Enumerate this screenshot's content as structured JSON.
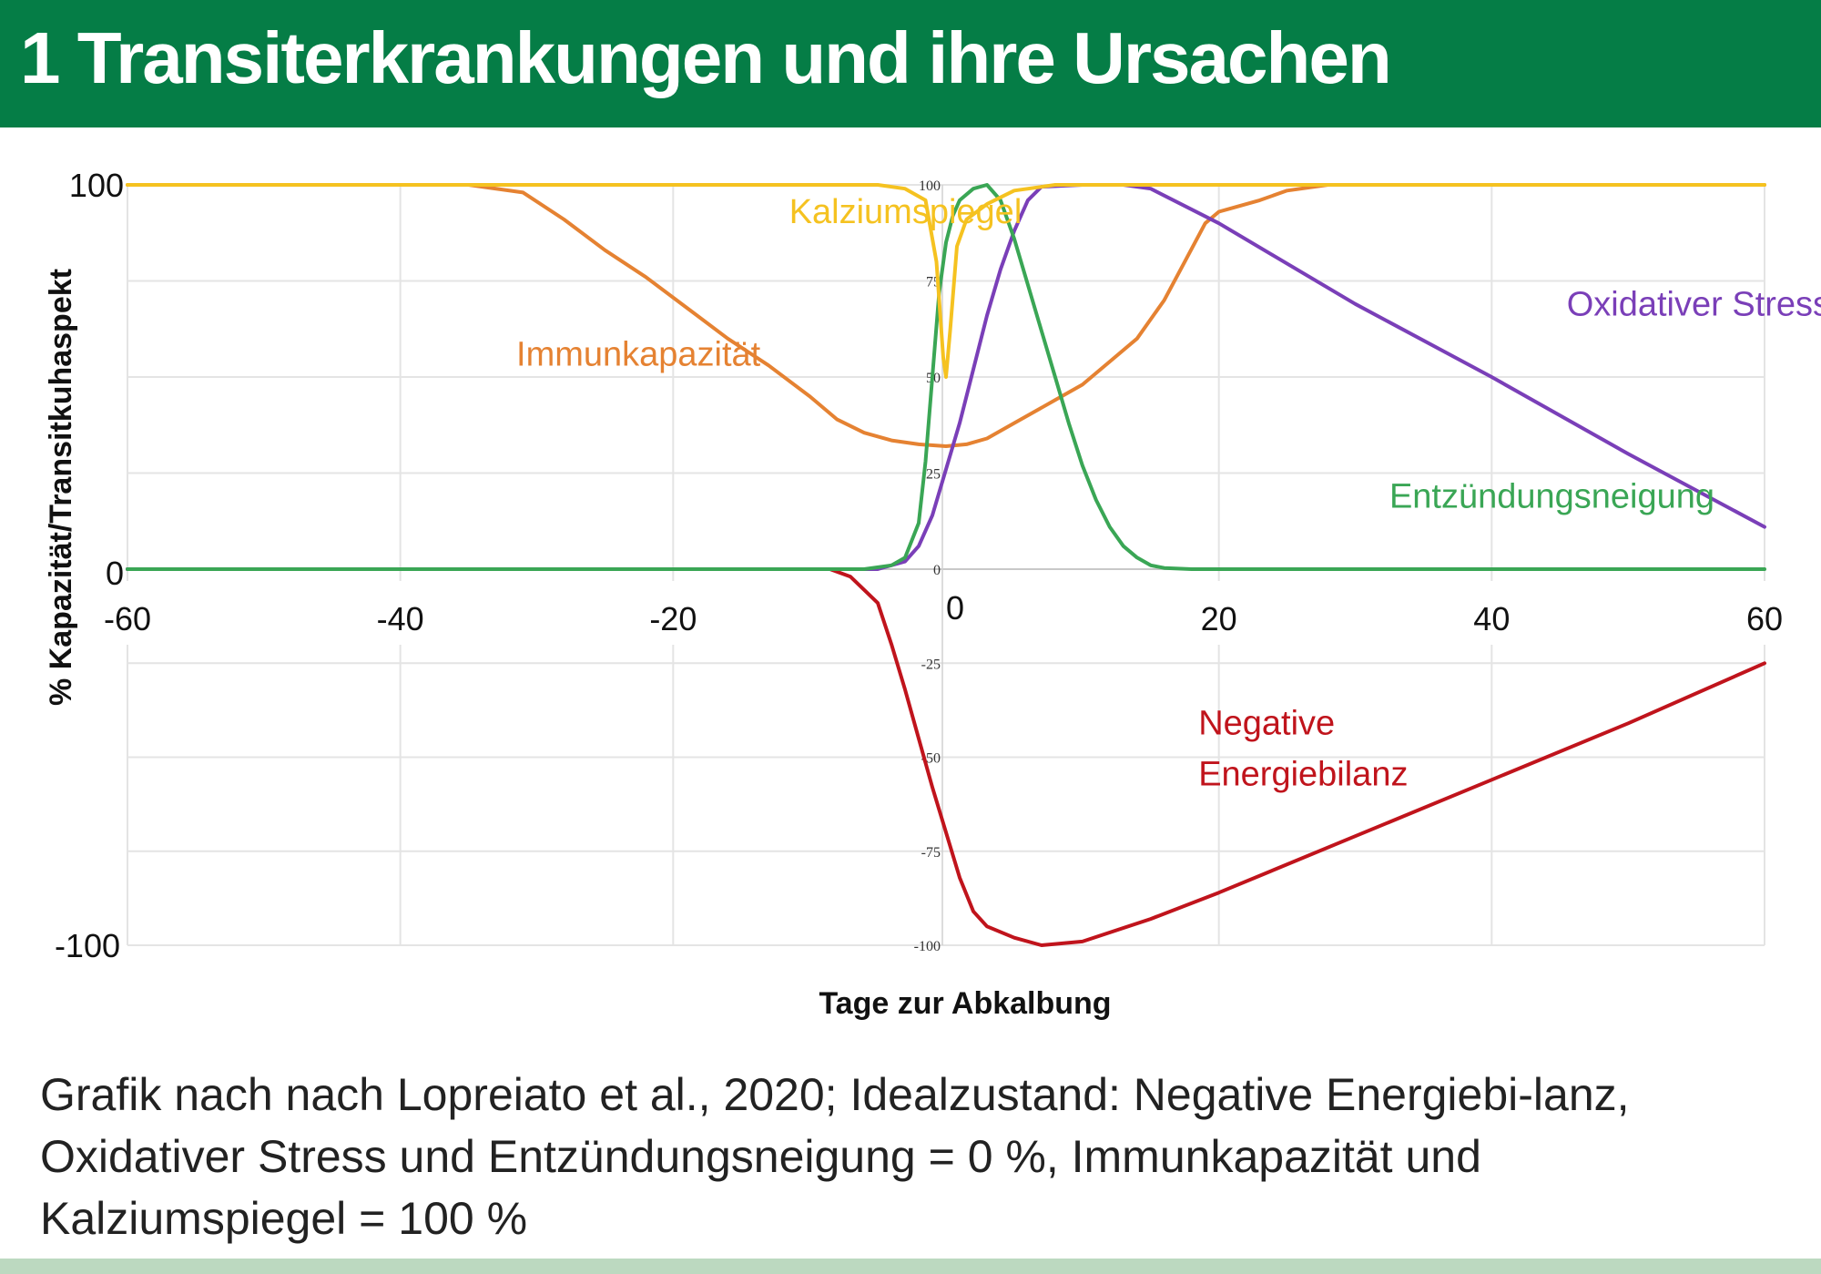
{
  "header": {
    "title": "1 Transiterkrankungen und ihre Ursachen"
  },
  "caption": "Grafik nach nach Lopreiato et al., 2020; Idealzustand: Negative Energiebi-lanz, Oxidativer Stress und Entzündungsneigung = 0 %, Immunkapazität und Kalziumspiegel = 100 %",
  "colors": {
    "header_bg": "#057d46",
    "footer_bar": "#bcd9c0",
    "kalzium": "#f5c220",
    "immun": "#e58232",
    "oxidativ": "#7a3fb8",
    "entzuendung": "#3aa655",
    "energie": "#c0141c"
  },
  "chart_data": {
    "type": "line",
    "xlabel": "Tage zur Abkalbung",
    "ylabel": "% Kapazität/Transitkuhaspekt",
    "xlim": [
      -60,
      60
    ],
    "ylim": [
      -100,
      100
    ],
    "x_ticks": [
      -60,
      -40,
      -20,
      0,
      20,
      40,
      60
    ],
    "y_ticks": [
      -100,
      0,
      100
    ],
    "inner_y_ticks": [
      100,
      75,
      50,
      25,
      0,
      -25,
      -50,
      -75,
      -100
    ],
    "grid": true,
    "series": [
      {
        "name": "Kalziumspiegel",
        "color": "#f5c220",
        "label_pos": [
          -11.5,
          90
        ],
        "points": [
          [
            -60,
            100
          ],
          [
            -5,
            100
          ],
          [
            -3,
            99
          ],
          [
            -1.5,
            96
          ],
          [
            -0.7,
            80
          ],
          [
            -0.2,
            55
          ],
          [
            0,
            50
          ],
          [
            0.3,
            62
          ],
          [
            0.8,
            84
          ],
          [
            1.5,
            91
          ],
          [
            3,
            95
          ],
          [
            5,
            98.5
          ],
          [
            8,
            100
          ],
          [
            60,
            100
          ]
        ]
      },
      {
        "name": "Immunkapazität",
        "color": "#e58232",
        "label_pos": [
          -31.5,
          53
        ],
        "points": [
          [
            -60,
            100
          ],
          [
            -35,
            100
          ],
          [
            -31,
            98
          ],
          [
            -28,
            91
          ],
          [
            -25,
            83
          ],
          [
            -22,
            76
          ],
          [
            -19,
            68
          ],
          [
            -16,
            60
          ],
          [
            -13,
            53
          ],
          [
            -10,
            45
          ],
          [
            -8,
            39
          ],
          [
            -6,
            35.5
          ],
          [
            -4,
            33.5
          ],
          [
            -2,
            32.5
          ],
          [
            0,
            32
          ],
          [
            1.5,
            32.5
          ],
          [
            3,
            34
          ],
          [
            5,
            38
          ],
          [
            8,
            44
          ],
          [
            10,
            48
          ],
          [
            12,
            54
          ],
          [
            14,
            60
          ],
          [
            16,
            70
          ],
          [
            17.5,
            80
          ],
          [
            19,
            90
          ],
          [
            20,
            93
          ],
          [
            21,
            94
          ],
          [
            23,
            96
          ],
          [
            25,
            98.5
          ],
          [
            28,
            100
          ],
          [
            60,
            100
          ]
        ]
      },
      {
        "name": "Oxidativer Stress",
        "color": "#7a3fb8",
        "label_pos": [
          45.5,
          66
        ],
        "points": [
          [
            -60,
            0
          ],
          [
            -5,
            0
          ],
          [
            -3,
            2
          ],
          [
            -2,
            6
          ],
          [
            -1,
            14
          ],
          [
            0,
            26
          ],
          [
            1,
            38
          ],
          [
            2,
            52
          ],
          [
            3,
            66
          ],
          [
            4,
            78
          ],
          [
            5,
            88
          ],
          [
            6,
            96
          ],
          [
            7,
            99.5
          ],
          [
            10,
            100
          ],
          [
            13,
            100
          ],
          [
            15,
            99
          ],
          [
            20,
            90
          ],
          [
            30,
            69
          ],
          [
            40,
            50
          ],
          [
            50,
            30
          ],
          [
            60,
            11
          ]
        ]
      },
      {
        "name": "Entzündungsneigung",
        "color": "#3aa655",
        "label_pos": [
          32.5,
          16
        ],
        "points": [
          [
            -60,
            0
          ],
          [
            -6,
            0
          ],
          [
            -4,
            1
          ],
          [
            -3,
            3
          ],
          [
            -2,
            12
          ],
          [
            -1.5,
            28
          ],
          [
            -1,
            50
          ],
          [
            -0.5,
            72
          ],
          [
            0,
            85
          ],
          [
            0.5,
            92
          ],
          [
            1,
            96
          ],
          [
            2,
            99
          ],
          [
            3,
            100
          ],
          [
            4,
            96
          ],
          [
            5,
            86
          ],
          [
            6,
            74
          ],
          [
            7,
            62
          ],
          [
            8,
            50
          ],
          [
            9,
            38
          ],
          [
            10,
            27
          ],
          [
            11,
            18
          ],
          [
            12,
            11
          ],
          [
            13,
            6
          ],
          [
            14,
            3
          ],
          [
            15,
            1
          ],
          [
            16,
            0.3
          ],
          [
            18,
            0
          ],
          [
            60,
            0
          ]
        ]
      },
      {
        "name": "Negative Energiebilanz",
        "label_lines": [
          "Negative",
          "Energiebilanz"
        ],
        "color": "#c0141c",
        "label_pos": [
          18.5,
          -44
        ],
        "points": [
          [
            -60,
            0
          ],
          [
            -8.5,
            0
          ],
          [
            -7,
            -2
          ],
          [
            -5,
            -9
          ],
          [
            -4,
            -20
          ],
          [
            -3,
            -32
          ],
          [
            -2,
            -45
          ],
          [
            -1,
            -58
          ],
          [
            0,
            -70
          ],
          [
            1,
            -82
          ],
          [
            2,
            -91
          ],
          [
            3,
            -95
          ],
          [
            5,
            -98
          ],
          [
            7,
            -100
          ],
          [
            10,
            -99
          ],
          [
            15,
            -93
          ],
          [
            20,
            -86
          ],
          [
            30,
            -71
          ],
          [
            40,
            -56
          ],
          [
            50,
            -41
          ],
          [
            60,
            -25
          ]
        ]
      }
    ]
  }
}
